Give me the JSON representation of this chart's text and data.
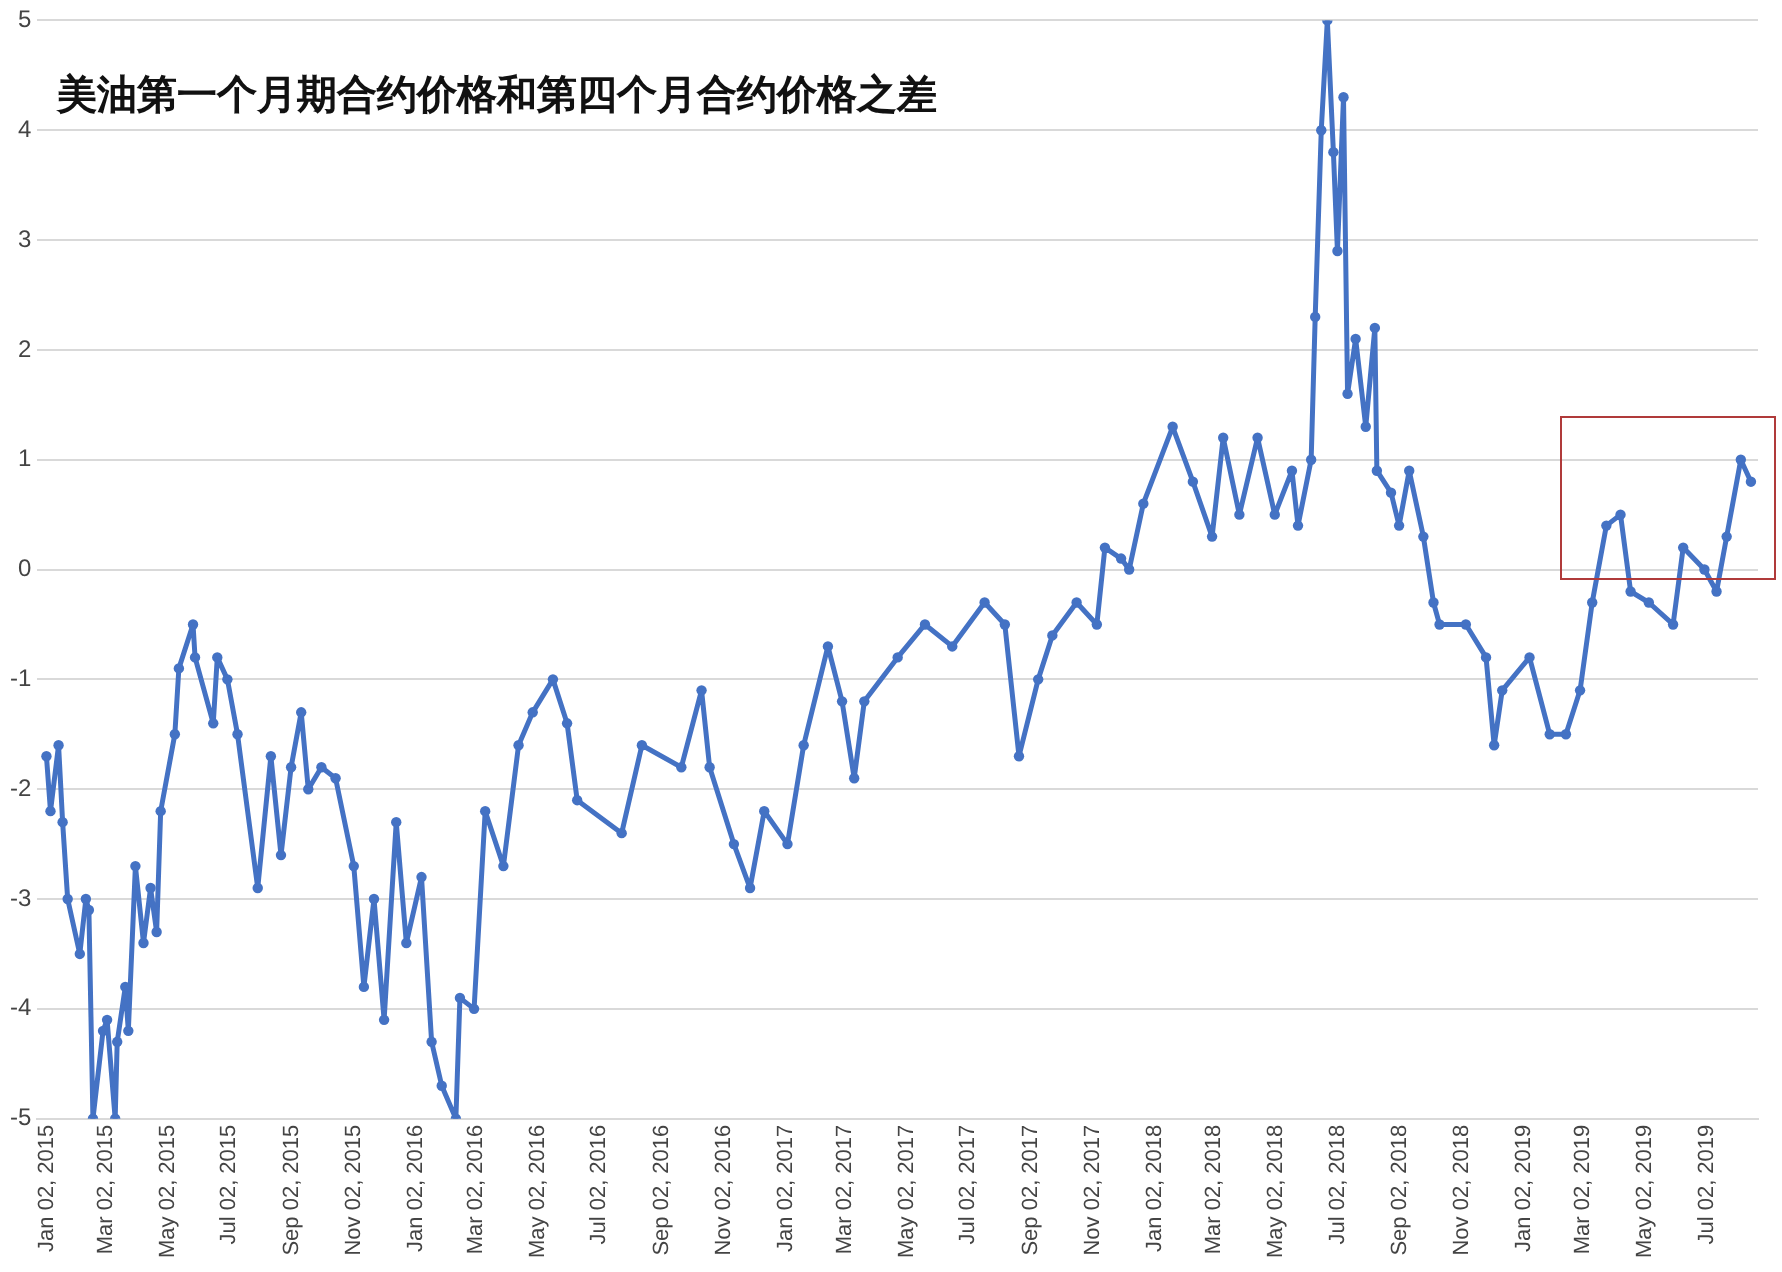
{
  "chart_data": {
    "type": "line",
    "title": "美油第一个月期合约价格和第四个月合约价格之差",
    "x": [
      "2015-01-02",
      "2015-01-06",
      "2015-01-14",
      "2015-01-18",
      "2015-01-23",
      "2015-02-04",
      "2015-02-10",
      "2015-02-13",
      "2015-02-17",
      "2015-02-27",
      "2015-03-03",
      "2015-03-11",
      "2015-03-13",
      "2015-03-21",
      "2015-03-24",
      "2015-03-31",
      "2015-04-08",
      "2015-04-15",
      "2015-04-21",
      "2015-04-25",
      "2015-05-09",
      "2015-05-13",
      "2015-05-27",
      "2015-05-29",
      "2015-06-16",
      "2015-06-20",
      "2015-06-30",
      "2015-07-10",
      "2015-07-30",
      "2015-08-12",
      "2015-08-22",
      "2015-09-01",
      "2015-09-11",
      "2015-09-18",
      "2015-10-01",
      "2015-10-15",
      "2015-11-02",
      "2015-11-12",
      "2015-11-22",
      "2015-12-02",
      "2015-12-14",
      "2015-12-24",
      "2016-01-08",
      "2016-01-18",
      "2016-01-28",
      "2016-02-11",
      "2016-02-15",
      "2016-02-29",
      "2016-03-11",
      "2016-03-29",
      "2016-04-13",
      "2016-04-27",
      "2016-05-17",
      "2016-05-31",
      "2016-06-10",
      "2016-07-24",
      "2016-08-13",
      "2016-09-21",
      "2016-10-11",
      "2016-10-19",
      "2016-11-12",
      "2016-11-28",
      "2016-12-12",
      "2017-01-04",
      "2017-01-20",
      "2017-02-13",
      "2017-02-27",
      "2017-03-11",
      "2017-03-21",
      "2017-04-23",
      "2017-05-20",
      "2017-06-16",
      "2017-07-18",
      "2017-08-07",
      "2017-08-21",
      "2017-09-09",
      "2017-09-23",
      "2017-10-17",
      "2017-11-06",
      "2017-11-14",
      "2017-11-30",
      "2017-12-08",
      "2017-12-22",
      "2018-01-20",
      "2018-02-09",
      "2018-02-28",
      "2018-03-11",
      "2018-03-27",
      "2018-04-14",
      "2018-05-01",
      "2018-05-18",
      "2018-05-24",
      "2018-06-06",
      "2018-06-10",
      "2018-06-16",
      "2018-06-22",
      "2018-06-28",
      "2018-07-02",
      "2018-07-08",
      "2018-07-12",
      "2018-07-20",
      "2018-07-30",
      "2018-08-08",
      "2018-08-10",
      "2018-08-24",
      "2018-09-01",
      "2018-09-11",
      "2018-09-25",
      "2018-10-05",
      "2018-10-11",
      "2018-11-06",
      "2018-11-26",
      "2018-12-04",
      "2018-12-12",
      "2019-01-08",
      "2019-01-28",
      "2019-02-13",
      "2019-02-27",
      "2019-03-11",
      "2019-03-25",
      "2019-04-08",
      "2019-04-18",
      "2019-05-06",
      "2019-05-30",
      "2019-06-09",
      "2019-06-30",
      "2019-07-12",
      "2019-07-22",
      "2019-08-05",
      "2019-08-15"
    ],
    "series": [
      {
        "color": "#4472c4",
        "values": [
          -1.7,
          -2.2,
          -1.6,
          -2.3,
          -3.0,
          -3.5,
          -3.0,
          -3.1,
          -5.0,
          -4.2,
          -4.1,
          -5.0,
          -4.3,
          -3.8,
          -4.2,
          -2.7,
          -3.4,
          -2.9,
          -3.3,
          -2.2,
          -1.5,
          -0.9,
          -0.5,
          -0.8,
          -1.4,
          -0.8,
          -1.0,
          -1.5,
          -2.9,
          -1.7,
          -2.6,
          -1.8,
          -1.3,
          -2.0,
          -1.8,
          -1.9,
          -2.7,
          -3.8,
          -3.0,
          -4.1,
          -2.3,
          -3.4,
          -2.8,
          -4.3,
          -4.7,
          -5.0,
          -3.9,
          -4.0,
          -2.2,
          -2.7,
          -1.6,
          -1.3,
          -1.0,
          -1.4,
          -2.1,
          -2.4,
          -1.6,
          -1.8,
          -1.1,
          -1.8,
          -2.5,
          -2.9,
          -2.2,
          -2.5,
          -1.6,
          -0.7,
          -1.2,
          -1.9,
          -1.2,
          -0.8,
          -0.5,
          -0.7,
          -0.3,
          -0.5,
          -1.7,
          -1.0,
          -0.6,
          -0.3,
          -0.5,
          0.2,
          0.1,
          0.0,
          0.6,
          1.3,
          0.8,
          0.3,
          1.2,
          0.5,
          1.2,
          0.5,
          0.9,
          0.4,
          1.0,
          2.3,
          4.0,
          5.0,
          3.8,
          2.9,
          4.3,
          1.6,
          2.1,
          1.3,
          2.2,
          0.9,
          0.7,
          0.4,
          0.9,
          0.3,
          -0.3,
          -0.5,
          -0.5,
          -0.8,
          -1.6,
          -1.1,
          -0.8,
          -1.5,
          -1.5,
          -1.1,
          -0.3,
          0.4,
          0.5,
          -0.2,
          -0.3,
          -0.5,
          0.2,
          0.0,
          -0.2,
          0.3,
          1.0,
          0.8
        ]
      }
    ],
    "xlim": [
      "2014-12-24",
      "2019-08-22"
    ],
    "xticks": [
      {
        "value": "2015-01-02",
        "label": "Jan 02, 2015"
      },
      {
        "value": "2015-03-02",
        "label": "Mar 02, 2015"
      },
      {
        "value": "2015-05-02",
        "label": "May 02, 2015"
      },
      {
        "value": "2015-07-02",
        "label": "Jul 02, 2015"
      },
      {
        "value": "2015-09-02",
        "label": "Sep 02, 2015"
      },
      {
        "value": "2015-11-02",
        "label": "Nov 02, 2015"
      },
      {
        "value": "2016-01-02",
        "label": "Jan 02, 2016"
      },
      {
        "value": "2016-03-02",
        "label": "Mar 02, 2016"
      },
      {
        "value": "2016-05-02",
        "label": "May 02, 2016"
      },
      {
        "value": "2016-07-02",
        "label": "Jul 02, 2016"
      },
      {
        "value": "2016-09-02",
        "label": "Sep 02, 2016"
      },
      {
        "value": "2016-11-02",
        "label": "Nov 02, 2016"
      },
      {
        "value": "2017-01-02",
        "label": "Jan 02, 2017"
      },
      {
        "value": "2017-03-02",
        "label": "Mar 02, 2017"
      },
      {
        "value": "2017-05-02",
        "label": "May 02, 2017"
      },
      {
        "value": "2017-07-02",
        "label": "Jul 02, 2017"
      },
      {
        "value": "2017-09-02",
        "label": "Sep 02, 2017"
      },
      {
        "value": "2017-11-02",
        "label": "Nov 02, 2017"
      },
      {
        "value": "2018-01-02",
        "label": "Jan 02, 2018"
      },
      {
        "value": "2018-03-02",
        "label": "Mar 02, 2018"
      },
      {
        "value": "2018-05-02",
        "label": "May 02, 2018"
      },
      {
        "value": "2018-07-02",
        "label": "Jul 02, 2018"
      },
      {
        "value": "2018-09-02",
        "label": "Sep 02, 2018"
      },
      {
        "value": "2018-11-02",
        "label": "Nov 02, 2018"
      },
      {
        "value": "2019-01-02",
        "label": "Jan 02, 2019"
      },
      {
        "value": "2019-03-02",
        "label": "Mar 02, 2019"
      },
      {
        "value": "2019-05-02",
        "label": "May 02, 2019"
      },
      {
        "value": "2019-07-02",
        "label": "Jul 02, 2019"
      }
    ],
    "ylim": [
      -5,
      5
    ],
    "yticks": [
      -5,
      -4,
      -3,
      -2,
      -1,
      0,
      1,
      2,
      3,
      4,
      5
    ],
    "grid": "y",
    "legend": false,
    "marker": "circle",
    "line_style": "solid"
  }
}
